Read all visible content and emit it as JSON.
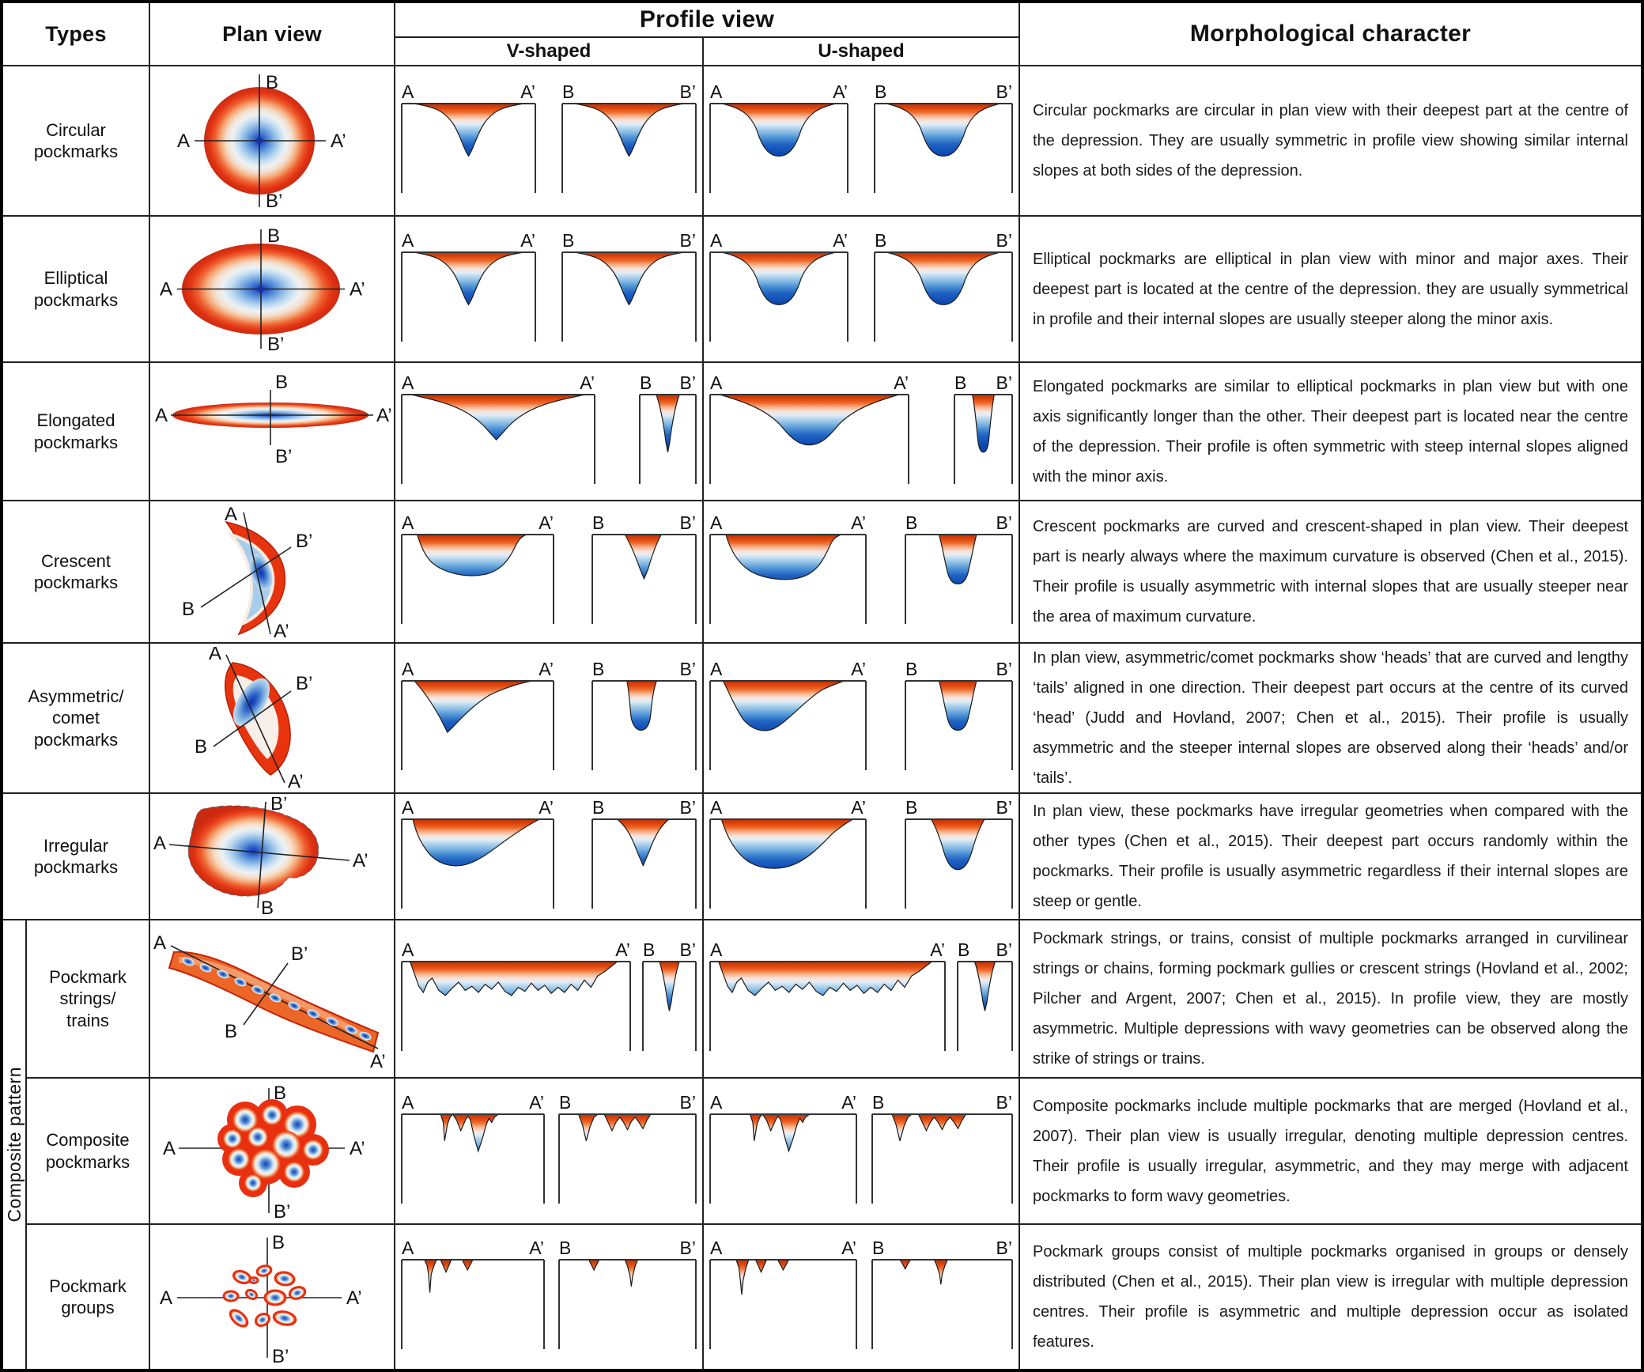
{
  "table": {
    "headers": {
      "types": "Types",
      "plan_view": "Plan view",
      "profile_view": "Profile view",
      "v_shaped": "V-shaped",
      "u_shaped": "U-shaped",
      "morphological_character": "Morphological character"
    },
    "composite_group_label": "Composite pattern",
    "colors": {
      "rim_red": "#e83010",
      "depression_top_red": "#e0490f",
      "depression_deep_blue": "#0c47b2"
    },
    "rows": [
      {
        "id": "circular",
        "type_label": "Circular\npockmarks",
        "plan": {
          "shape": "circular",
          "axis": {
            "a": "A",
            "a2": "A’",
            "b": "B",
            "b2": "B’"
          }
        },
        "profiles": {
          "v": [
            {
              "left": "A",
              "right": "A’",
              "shape": "v-sym"
            },
            {
              "left": "B",
              "right": "B’",
              "shape": "v-sym"
            }
          ],
          "u": [
            {
              "left": "A",
              "right": "A’",
              "shape": "u-sym"
            },
            {
              "left": "B",
              "right": "B’",
              "shape": "u-sym"
            }
          ]
        },
        "description": "Circular pockmarks are circular in plan view with their deepest part at the centre of the depression. They are usually symmetric in profile view showing similar internal slopes at both sides of the depression."
      },
      {
        "id": "elliptical",
        "type_label": "Elliptical\npockmarks",
        "plan": {
          "shape": "elliptical",
          "axis": {
            "a": "A",
            "a2": "A’",
            "b": "B",
            "b2": "B’"
          }
        },
        "profiles": {
          "v": [
            {
              "left": "A",
              "right": "A’",
              "shape": "v-sym"
            },
            {
              "left": "B",
              "right": "B’",
              "shape": "v-sym"
            }
          ],
          "u": [
            {
              "left": "A",
              "right": "A’",
              "shape": "u-sym"
            },
            {
              "left": "B",
              "right": "B’",
              "shape": "u-sym"
            }
          ]
        },
        "description": "Elliptical pockmarks are elliptical in plan view with minor and major axes. Their deepest part is located at the centre of the depression. they are usually symmetrical in profile and their internal slopes are usually steeper along the minor axis."
      },
      {
        "id": "elongated",
        "type_label": "Elongated\npockmarks",
        "plan": {
          "shape": "elongated",
          "axis": {
            "a": "A",
            "a2": "A’",
            "b": "B",
            "b2": "B’"
          }
        },
        "profiles": {
          "v": [
            {
              "left": "A",
              "right": "A’",
              "shape": "v-wide"
            },
            {
              "left": "B",
              "right": "B’",
              "shape": "v-thin"
            }
          ],
          "u": [
            {
              "left": "A",
              "right": "A’",
              "shape": "u-wide"
            },
            {
              "left": "B",
              "right": "B’",
              "shape": "u-thin"
            }
          ]
        },
        "description": "Elongated pockmarks are similar to elliptical pockmarks in plan view but with one axis significantly longer than the other. Their deepest part is located near the centre of the depression. Their profile is often symmetric with steep internal slopes aligned with the minor axis."
      },
      {
        "id": "crescent",
        "type_label": "Crescent\npockmarks",
        "plan": {
          "shape": "crescent",
          "axis": {
            "a": "A",
            "a2": "A’",
            "b": "B",
            "b2": "B’"
          }
        },
        "profiles": {
          "v": [
            {
              "left": "A",
              "right": "A’",
              "shape": "v-cres"
            },
            {
              "left": "B",
              "right": "B’",
              "shape": "v-cres-b"
            }
          ],
          "u": [
            {
              "left": "A",
              "right": "A’",
              "shape": "u-cres"
            },
            {
              "left": "B",
              "right": "B’",
              "shape": "u-cres-b"
            }
          ]
        },
        "description": "Crescent pockmarks are curved and crescent-shaped in plan view. Their deepest part is nearly always where the maximum curvature is observed (Chen et al., 2015). Their profile is usually asymmetric with internal slopes that are usually steeper near the area of maximum curvature."
      },
      {
        "id": "asymmetric-comet",
        "type_label": "Asymmetric/\ncomet\npockmarks",
        "plan": {
          "shape": "comet",
          "axis": {
            "a": "A",
            "a2": "A’",
            "b": "B",
            "b2": "B’"
          }
        },
        "profiles": {
          "v": [
            {
              "left": "A",
              "right": "A’",
              "shape": "v-asym"
            },
            {
              "left": "B",
              "right": "B’",
              "shape": "v-asym-b"
            }
          ],
          "u": [
            {
              "left": "A",
              "right": "A’",
              "shape": "u-asym"
            },
            {
              "left": "B",
              "right": "B’",
              "shape": "u-cres-b"
            }
          ]
        },
        "description": "In plan view, asymmetric/comet pockmarks show ‘heads’ that are curved and lengthy ‘tails’ aligned in one direction. Their deepest part occurs at the centre of its curved ‘head’ (Judd and Hovland, 2007; Chen et al., 2015). Their profile is usually asymmetric and the steeper internal slopes are observed along their ‘heads’ and/or ‘tails’."
      },
      {
        "id": "irregular",
        "type_label": "Irregular\npockmarks",
        "plan": {
          "shape": "irregular",
          "axis": {
            "a": "A",
            "a2": "A’",
            "b": "B",
            "b2": "B’"
          }
        },
        "profiles": {
          "v": [
            {
              "left": "A",
              "right": "A’",
              "shape": "v-irr"
            },
            {
              "left": "B",
              "right": "B’",
              "shape": "v-irr-b"
            }
          ],
          "u": [
            {
              "left": "A",
              "right": "A’",
              "shape": "u-irr"
            },
            {
              "left": "B",
              "right": "B’",
              "shape": "u-irr-b"
            }
          ]
        },
        "description": "In plan view, these pockmarks have irregular geometries when compared with the other types (Chen et al., 2015). Their deepest part occurs randomly within the pockmarks. Their profile is usually asymmetric regardless if their internal slopes are steep or gentle."
      },
      {
        "id": "pockmark-strings",
        "type_label": "Pockmark\nstrings/\ntrains",
        "plan": {
          "shape": "strings",
          "axis": {
            "a": "A",
            "a2": "A’",
            "b": "B",
            "b2": "B’"
          }
        },
        "profiles": {
          "v": [
            {
              "left": "A",
              "right": "A’",
              "shape": "wavy"
            },
            {
              "left": "B",
              "right": "B’",
              "shape": "wavy-b"
            }
          ],
          "u": [
            {
              "left": "A",
              "right": "A’",
              "shape": "wavy"
            },
            {
              "left": "B",
              "right": "B’",
              "shape": "wavy-b"
            }
          ]
        },
        "description": "Pockmark strings, or trains, consist of multiple pockmarks arranged in curvilinear strings or chains, forming pockmark gullies or crescent strings (Hovland et al., 2002; Pilcher and Argent, 2007; Chen et al., 2015). In profile view, they are mostly asymmetric. Multiple depressions with wavy geometries can be observed along the strike of strings or trains."
      },
      {
        "id": "composite-pockmarks",
        "type_label": "Composite\npockmarks",
        "plan": {
          "shape": "composite",
          "axis": {
            "a": "A",
            "a2": "A’",
            "b": "B",
            "b2": "B’"
          }
        },
        "profiles": {
          "v": [
            {
              "left": "A",
              "right": "A’",
              "shape": "clus-a"
            },
            {
              "left": "B",
              "right": "B’",
              "shape": "clus-b"
            }
          ],
          "u": [
            {
              "left": "A",
              "right": "A’",
              "shape": "clus-a"
            },
            {
              "left": "B",
              "right": "B’",
              "shape": "clus-b"
            }
          ]
        },
        "description": "Composite pockmarks include multiple pockmarks that are merged (Hovland et al., 2007). Their plan view is usually irregular, denoting multiple depression centres. Their profile is usually irregular, asymmetric, and they may merge with adjacent pockmarks to form wavy geometries."
      },
      {
        "id": "pockmark-groups",
        "type_label": "Pockmark\ngroups",
        "plan": {
          "shape": "groups",
          "axis": {
            "a": "A",
            "a2": "A’",
            "b": "B",
            "b2": "B’"
          }
        },
        "profiles": {
          "v": [
            {
              "left": "A",
              "right": "A’",
              "shape": "grp-a"
            },
            {
              "left": "B",
              "right": "B’",
              "shape": "grp-b"
            }
          ],
          "u": [
            {
              "left": "A",
              "right": "A’",
              "shape": "grp-ua"
            },
            {
              "left": "B",
              "right": "B’",
              "shape": "grp-ub"
            }
          ]
        },
        "description": "Pockmark groups consist of multiple pockmarks organised in groups or densely distributed (Chen et al., 2015). Their plan view is irregular with multiple depression centres. Their profile is asymmetric and multiple depression occur as isolated features."
      }
    ]
  }
}
